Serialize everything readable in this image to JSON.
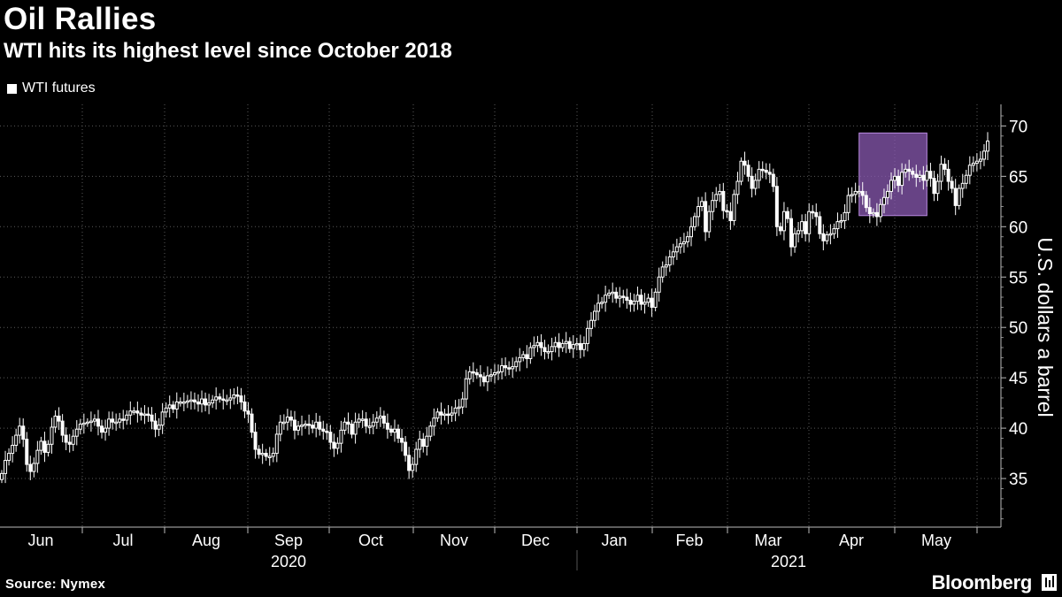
{
  "title": "Oil Rallies",
  "subtitle": "WTI hits its highest level since October 2018",
  "source": "Source: Nymex",
  "brand": "Bloomberg",
  "chart_data": {
    "type": "candlestick",
    "legend": [
      "WTI futures"
    ],
    "ylabel": "U.S. dollars a barrel",
    "ylim": [
      30,
      71
    ],
    "yticks": [
      35,
      40,
      45,
      50,
      55,
      60,
      65,
      70
    ],
    "months": [
      "Jun",
      "Jul",
      "Aug",
      "Sep",
      "Oct",
      "Nov",
      "Dec",
      "Jan",
      "Feb",
      "Mar",
      "Apr",
      "May"
    ],
    "years": [
      "2020",
      "2021"
    ],
    "highlight": {
      "from_index": 241,
      "to_index": 258,
      "ylow": 61.1,
      "yhigh": 69.3,
      "color": "#8a5ab2"
    },
    "close": [
      35.5,
      36.8,
      37.5,
      38.3,
      39.3,
      40.2,
      38.9,
      36.4,
      35.7,
      36.5,
      37.8,
      38.7,
      37.6,
      38.4,
      40.1,
      41.2,
      40.7,
      39.3,
      38.6,
      38.4,
      39.2,
      39.9,
      40.4,
      40.5,
      40.6,
      40.7,
      40.9,
      40.2,
      39.6,
      40.0,
      40.9,
      40.6,
      40.6,
      40.9,
      40.8,
      41.3,
      41.7,
      41.7,
      41.5,
      41.3,
      41.4,
      41.3,
      40.7,
      39.9,
      40.3,
      41.6,
      42.0,
      42.3,
      41.9,
      42.6,
      42.6,
      42.6,
      42.7,
      42.8,
      42.6,
      42.4,
      42.9,
      42.3,
      42.5,
      42.8,
      43.1,
      42.9,
      42.8,
      42.8,
      43.0,
      43.3,
      43.2,
      42.6,
      41.7,
      41.4,
      39.6,
      37.9,
      37.4,
      37.5,
      37.2,
      37.2,
      37.5,
      39.4,
      40.6,
      40.6,
      41.1,
      40.8,
      39.8,
      40.2,
      40.3,
      40.4,
      40.3,
      40.0,
      40.6,
      39.9,
      39.7,
      39.6,
      38.6,
      38.0,
      38.5,
      39.8,
      40.6,
      40.4,
      39.4,
      40.6,
      40.9,
      40.9,
      40.2,
      40.2,
      40.6,
      41.0,
      41.2,
      40.5,
      39.9,
      39.6,
      39.9,
      39.0,
      38.6,
      37.3,
      35.8,
      36.4,
      37.9,
      38.9,
      38.2,
      39.2,
      40.2,
      41.0,
      41.6,
      41.3,
      41.4,
      41.3,
      41.5,
      42.0,
      42.1,
      42.9,
      44.9,
      45.6,
      45.5,
      45.3,
      45.1,
      44.6,
      45.2,
      45.3,
      45.5,
      45.6,
      46.2,
      46.0,
      45.9,
      46.1,
      46.6,
      47.0,
      47.3,
      46.9,
      48.0,
      48.2,
      48.5,
      48.0,
      47.6,
      47.6,
      48.1,
      48.5,
      48.0,
      48.4,
      48.6,
      47.9,
      48.3,
      48.4,
      47.8,
      48.4,
      49.9,
      50.7,
      51.6,
      52.4,
      52.5,
      53.2,
      53.4,
      53.5,
      52.9,
      53.1,
      53.0,
      52.7,
      52.3,
      52.6,
      53.2,
      52.3,
      52.5,
      52.9,
      52.0,
      53.5,
      55.0,
      56.0,
      56.2,
      57.0,
      57.5,
      58.0,
      58.3,
      58.5,
      59.0,
      60.0,
      61.0,
      62.0,
      62.5,
      59.5,
      61.5,
      62.6,
      63.2,
      63.5,
      61.6,
      61.5,
      60.6,
      63.2,
      64.5,
      66.5,
      66.1,
      65.0,
      63.8,
      64.6,
      65.7,
      65.6,
      65.4,
      65.2,
      64.0,
      60.0,
      59.6,
      61.5,
      60.8,
      58.0,
      59.3,
      59.6,
      60.5,
      59.3,
      61.5,
      61.4,
      61.0,
      59.3,
      58.6,
      59.2,
      59.3,
      59.8,
      60.5,
      60.6,
      61.4,
      63.1,
      63.2,
      63.5,
      63.5,
      63.1,
      61.9,
      61.3,
      61.4,
      61.0,
      62.2,
      62.9,
      63.5,
      64.6,
      65.0,
      64.1,
      65.4,
      65.7,
      65.5,
      65.2,
      64.9,
      65.1,
      64.6,
      65.5,
      64.8,
      63.3,
      64.5,
      66.2,
      65.7,
      64.5,
      63.8,
      62.1,
      63.8,
      64.3,
      65.1,
      66.1,
      66.3,
      66.5,
      66.7,
      67.5,
      68.5
    ]
  }
}
